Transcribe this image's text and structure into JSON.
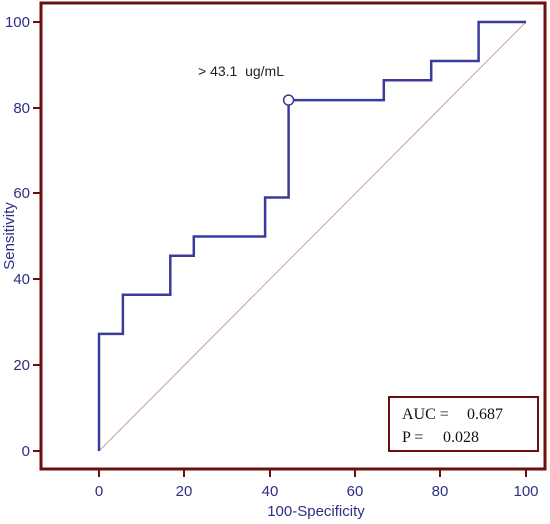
{
  "chart_data": {
    "type": "line",
    "title": "",
    "xlabel": "100-Specificity",
    "ylabel": "Sensitivity",
    "xlim": [
      0,
      100
    ],
    "ylim": [
      0,
      100
    ],
    "x_ticks": [
      "0",
      "20",
      "40",
      "60",
      "80",
      "100"
    ],
    "y_ticks": [
      "0",
      "20",
      "40",
      "60",
      "80",
      "100"
    ],
    "grid": false,
    "series": [
      {
        "name": "",
        "step": true,
        "points": [
          [
            0,
            0
          ],
          [
            0,
            27.3
          ],
          [
            5.6,
            27.3
          ],
          [
            5.6,
            36.4
          ],
          [
            16.7,
            36.4
          ],
          [
            16.7,
            45.5
          ],
          [
            22.2,
            45.5
          ],
          [
            22.2,
            50.0
          ],
          [
            38.9,
            50.0
          ],
          [
            38.9,
            59.1
          ],
          [
            44.4,
            59.1
          ],
          [
            44.4,
            81.8
          ],
          [
            66.7,
            81.8
          ],
          [
            66.7,
            86.4
          ],
          [
            77.8,
            86.4
          ],
          [
            77.8,
            90.9
          ],
          [
            88.9,
            90.9
          ],
          [
            88.9,
            100
          ],
          [
            100,
            100
          ]
        ]
      }
    ],
    "reference_line": {
      "from": [
        0,
        0
      ],
      "to": [
        100,
        100
      ]
    },
    "criterion_point": {
      "x": 44.4,
      "y": 81.8,
      "label": "> 43.1  ug/mL"
    },
    "stats_box": {
      "auc_label": "AUC =",
      "auc_value": "0.687",
      "p_label": "P =",
      "p_value": "0.028"
    },
    "colors": {
      "roc_line": "#3b3b9c",
      "frame": "#6b0f0f",
      "reference": "#c9a0a0",
      "text": "#2e2e86"
    }
  }
}
